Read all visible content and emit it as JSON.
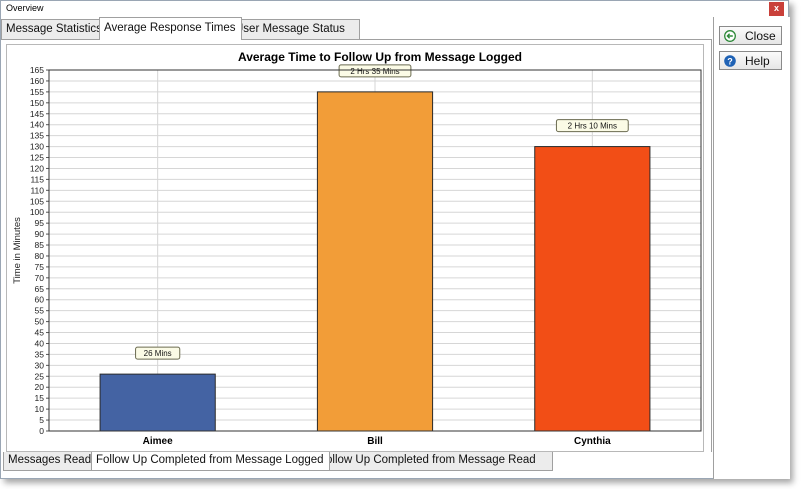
{
  "window": {
    "title": "Overview",
    "close_glyph": "x"
  },
  "top_tabs": [
    {
      "label": "Message Statistics"
    },
    {
      "label": "Average Response Times"
    },
    {
      "label": "User Message Status"
    }
  ],
  "bottom_tabs": [
    {
      "label": "Messages Read"
    },
    {
      "label": "Follow Up Completed from Message Logged"
    },
    {
      "label": "Follow Up Completed from Message Read"
    }
  ],
  "side_buttons": {
    "close": {
      "label": "Close",
      "icon": "back-arrow-icon"
    },
    "help": {
      "label": "Help",
      "icon": "help-icon"
    }
  },
  "chart_data": {
    "type": "bar",
    "title": "Average Time to Follow Up from Message Logged",
    "xlabel": "",
    "ylabel": "Time in Minutes",
    "ylim": [
      0,
      165
    ],
    "ytick_step": 5,
    "grid": true,
    "categories": [
      "Aimee",
      "Bill",
      "Cynthia"
    ],
    "values": [
      26,
      155,
      130
    ],
    "data_labels": [
      "26 Mins",
      "2 Hrs 35 Mins",
      "2 Hrs 10 Mins"
    ],
    "colors": [
      "#4463a3",
      "#f29d38",
      "#f24e16"
    ]
  }
}
